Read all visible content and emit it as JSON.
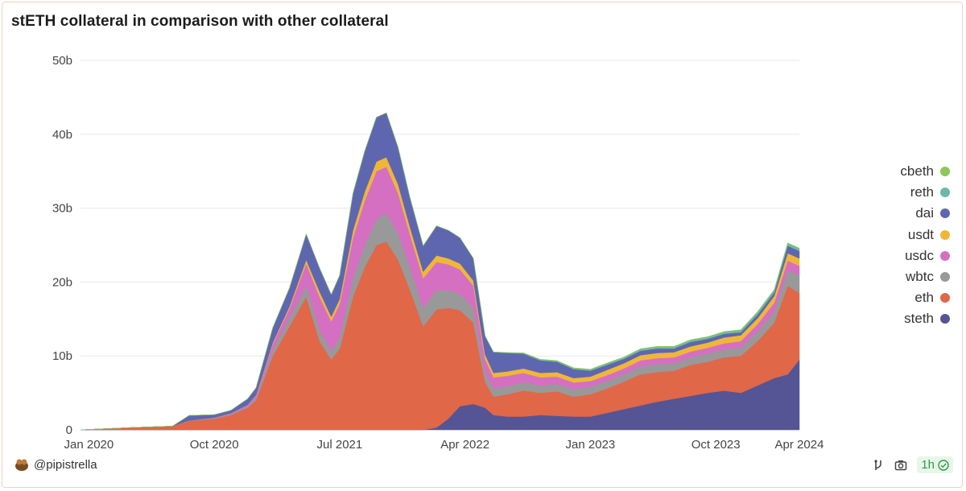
{
  "title": "stETH collateral in comparison with other collateral",
  "chart_data": {
    "type": "area",
    "stacked": true,
    "title": "stETH collateral in comparison with other collateral",
    "xlabel": "",
    "ylabel": "",
    "ylim": [
      0,
      50
    ],
    "y_unit": "b",
    "y_ticks": [
      "0",
      "10b",
      "20b",
      "30b",
      "40b",
      "50b"
    ],
    "x_ticks": [
      "Jan 2020",
      "Oct 2020",
      "Jul 2021",
      "Apr 2022",
      "Jan 2023",
      "Oct 2023",
      "Apr 2024"
    ],
    "x_tick_positions": [
      2020.0,
      2020.75,
      2021.5,
      2022.25,
      2023.0,
      2023.75,
      2024.25
    ],
    "x_range": [
      2019.95,
      2024.25
    ],
    "x": [
      2019.95,
      2020.25,
      2020.5,
      2020.6,
      2020.75,
      2020.85,
      2020.95,
      2021.0,
      2021.1,
      2021.2,
      2021.3,
      2021.38,
      2021.45,
      2021.5,
      2021.58,
      2021.65,
      2021.72,
      2021.78,
      2021.85,
      2021.92,
      2022.0,
      2022.08,
      2022.15,
      2022.22,
      2022.3,
      2022.37,
      2022.42,
      2022.5,
      2022.6,
      2022.7,
      2022.8,
      2022.9,
      2023.0,
      2023.1,
      2023.2,
      2023.3,
      2023.4,
      2023.5,
      2023.6,
      2023.7,
      2023.8,
      2023.9,
      2024.0,
      2024.1,
      2024.18,
      2024.25
    ],
    "series": [
      {
        "name": "steth",
        "color": "#555494",
        "values": [
          0,
          0,
          0,
          0,
          0,
          0,
          0,
          0,
          0,
          0,
          0,
          0,
          0,
          0,
          0,
          0,
          0,
          0,
          0,
          0,
          0,
          0.3,
          1.5,
          3.2,
          3.5,
          3.0,
          2.0,
          1.8,
          1.8,
          2.0,
          1.9,
          1.8,
          1.8,
          2.3,
          2.8,
          3.3,
          3.8,
          4.2,
          4.6,
          5.0,
          5.3,
          5.0,
          6.0,
          7.0,
          7.5,
          9.5
        ]
      },
      {
        "name": "eth",
        "color": "#e06747",
        "values": [
          0,
          0.3,
          0.5,
          1.2,
          1.5,
          2.0,
          3.0,
          4.0,
          10.0,
          14.0,
          18.0,
          12.0,
          9.5,
          11.0,
          18.0,
          22.0,
          25.0,
          25.5,
          23.0,
          19.0,
          14.0,
          16.0,
          15.0,
          13.0,
          11.0,
          3.5,
          2.5,
          3.0,
          3.5,
          3.0,
          3.3,
          2.7,
          3.0,
          3.3,
          3.7,
          4.2,
          4.0,
          3.8,
          4.2,
          4.2,
          4.5,
          5.0,
          6.0,
          7.5,
          12.0,
          9.0
        ]
      },
      {
        "name": "wbtc",
        "color": "#999999",
        "values": [
          0,
          0,
          0,
          0.05,
          0.1,
          0.15,
          0.2,
          0.3,
          0.8,
          1.2,
          1.5,
          1.5,
          1.2,
          1.5,
          2.5,
          3.0,
          3.5,
          3.8,
          3.5,
          3.0,
          2.5,
          2.6,
          2.4,
          2.2,
          2.0,
          1.3,
          1.1,
          1.1,
          1.1,
          1.0,
          1.0,
          1.0,
          1.0,
          1.0,
          1.0,
          1.1,
          1.1,
          1.0,
          1.0,
          1.1,
          1.1,
          1.1,
          1.3,
          1.5,
          2.0,
          2.5
        ]
      },
      {
        "name": "usdc",
        "color": "#d56fc2",
        "values": [
          0,
          0,
          0,
          0,
          0.05,
          0.1,
          0.2,
          0.3,
          0.8,
          1.2,
          3.0,
          4.5,
          4.0,
          4.5,
          5.5,
          6.0,
          6.5,
          6.3,
          5.5,
          4.5,
          4.0,
          3.8,
          3.5,
          3.3,
          3.0,
          1.8,
          1.5,
          1.4,
          1.3,
          1.1,
          1.0,
          0.9,
          0.8,
          0.8,
          0.8,
          0.8,
          0.8,
          0.8,
          0.8,
          0.8,
          0.8,
          0.9,
          1.0,
          1.2,
          1.4,
          1.2
        ]
      },
      {
        "name": "usdt",
        "color": "#efb737",
        "values": [
          0,
          0,
          0,
          0,
          0,
          0,
          0,
          0.1,
          0.2,
          0.3,
          0.5,
          0.7,
          0.6,
          0.7,
          1.0,
          1.2,
          1.3,
          1.3,
          1.2,
          1.0,
          0.9,
          0.9,
          0.8,
          0.8,
          0.7,
          0.6,
          0.6,
          0.6,
          0.6,
          0.6,
          0.6,
          0.6,
          0.6,
          0.7,
          0.7,
          0.7,
          0.7,
          0.7,
          0.7,
          0.7,
          0.8,
          0.8,
          0.8,
          0.9,
          1.0,
          1.0
        ]
      },
      {
        "name": "dai",
        "color": "#5f66b0",
        "values": [
          0,
          0,
          0,
          0.7,
          0.4,
          0.4,
          0.8,
          1.0,
          2.0,
          2.5,
          3.5,
          3.2,
          3.0,
          3.2,
          5.0,
          5.5,
          6.0,
          6.0,
          5.0,
          4.0,
          3.5,
          4.0,
          3.8,
          3.5,
          3.0,
          2.5,
          2.8,
          2.5,
          2.0,
          1.7,
          1.4,
          1.2,
          0.8,
          0.7,
          0.6,
          0.6,
          0.6,
          0.5,
          0.6,
          0.5,
          0.5,
          0.4,
          0.5,
          0.5,
          1.0,
          1.0
        ]
      },
      {
        "name": "reth",
        "color": "#6ab9a7",
        "values": [
          0,
          0,
          0,
          0,
          0,
          0,
          0,
          0,
          0,
          0,
          0,
          0,
          0,
          0,
          0,
          0,
          0,
          0,
          0,
          0,
          0,
          0,
          0,
          0,
          0,
          0,
          0.05,
          0.05,
          0.08,
          0.1,
          0.1,
          0.12,
          0.12,
          0.15,
          0.15,
          0.18,
          0.2,
          0.2,
          0.2,
          0.2,
          0.2,
          0.25,
          0.3,
          0.3,
          0.3,
          0.3
        ]
      },
      {
        "name": "cbeth",
        "color": "#8dc65a",
        "values": [
          0,
          0,
          0,
          0,
          0,
          0,
          0,
          0,
          0,
          0,
          0,
          0,
          0,
          0,
          0,
          0,
          0,
          0,
          0,
          0,
          0,
          0,
          0,
          0,
          0,
          0,
          0,
          0.02,
          0.05,
          0.05,
          0.08,
          0.08,
          0.08,
          0.1,
          0.1,
          0.1,
          0.1,
          0.1,
          0.1,
          0.1,
          0.1,
          0.1,
          0.1,
          0.1,
          0.1,
          0.1
        ]
      }
    ],
    "legend": [
      "cbeth",
      "reth",
      "dai",
      "usdt",
      "usdc",
      "wbtc",
      "eth",
      "steth"
    ],
    "legend_position": "right"
  },
  "footer": {
    "author": "@pipistrella",
    "refresh_label": "1h"
  }
}
